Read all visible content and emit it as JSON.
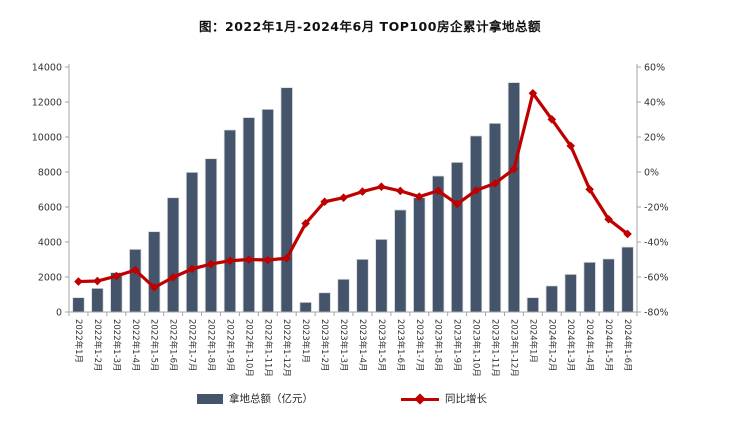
{
  "title": "图：2022年1月-2024年6月 TOP100房企累计拿地总额",
  "colors": {
    "bar": "#44546A",
    "bar_border": "#D9D9D9",
    "line": "#C00000",
    "axis": "#A6A6A6",
    "tick_text": "#333333",
    "title_text": "#111111"
  },
  "legend": [
    {
      "label": "拿地总额（亿元）",
      "type": "bar"
    },
    {
      "label": "同比增长",
      "type": "line"
    }
  ],
  "chart_data": {
    "type": "bar+line combo",
    "title": "图：2022年1月-2024年6月 TOP100房企累计拿地总额",
    "categories": [
      "2022年1月",
      "2022年1-2月",
      "2022年1-3月",
      "2022年1-4月",
      "2022年1-5月",
      "2022年1-6月",
      "2022年1-7月",
      "2022年1-8月",
      "2022年1-9月",
      "2022年1-10月",
      "2022年1-11月",
      "2022年1-12月",
      "2023年1月",
      "2023年1-2月",
      "2023年1-3月",
      "2023年1-4月",
      "2023年1-5月",
      "2023年1-6月",
      "2023年1-7月",
      "2023年1-8月",
      "2023年1-9月",
      "2023年1-10月",
      "2023年1-11月",
      "2023年1-12月",
      "2024年1月",
      "2024年1-2月",
      "2024年1-3月",
      "2024年1-4月",
      "2024年1-5月",
      "2024年1-6月"
    ],
    "series": [
      {
        "name": "拿地总额（亿元）",
        "type": "bar",
        "axis": "left",
        "values": [
          820,
          1350,
          2250,
          3580,
          4590,
          6530,
          7980,
          8760,
          10400,
          11110,
          11580,
          12820,
          550,
          1100,
          1870,
          3010,
          4150,
          5830,
          6530,
          7770,
          8550,
          10060,
          10780,
          13110,
          820,
          1490,
          2150,
          2840,
          3030,
          3710
        ]
      },
      {
        "name": "同比增长",
        "type": "line",
        "axis": "right",
        "values": [
          -62.6,
          -62.3,
          -59.5,
          -56.0,
          -66.0,
          -60.2,
          -55.4,
          -52.6,
          -50.7,
          -50.0,
          -50.3,
          -49.3,
          -29.4,
          -17.0,
          -14.7,
          -11.2,
          -8.4,
          -10.8,
          -14.1,
          -10.7,
          -18.3,
          -10.5,
          -6.5,
          1.7,
          45.0,
          30.1,
          14.9,
          -9.9,
          -27.0,
          -35.4
        ]
      }
    ],
    "left_axis": {
      "label": "",
      "min": 0,
      "max": 14000,
      "step": 2000,
      "tick_labels": [
        "0",
        "2000",
        "4000",
        "6000",
        "8000",
        "10000",
        "12000",
        "14000"
      ]
    },
    "right_axis": {
      "label": "",
      "min": -80,
      "max": 60,
      "step": 20,
      "tick_labels": [
        "-80%",
        "-60%",
        "-40%",
        "-20%",
        "0%",
        "20%",
        "40%",
        "60%"
      ]
    },
    "grid": false,
    "legend_position": "bottom"
  }
}
